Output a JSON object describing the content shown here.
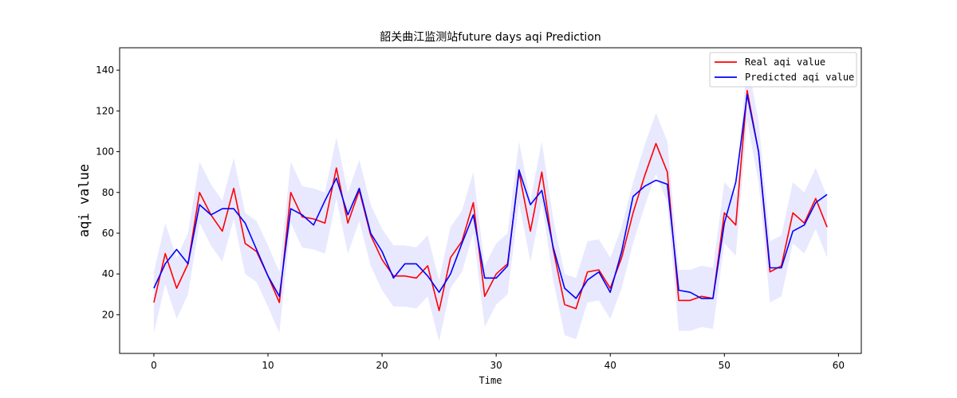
{
  "chart_data": {
    "type": "line",
    "title": "韶关曲江监测站future  days aqi Prediction",
    "xlabel": "Time",
    "ylabel": "aqi value",
    "xlim": [
      -3,
      62
    ],
    "ylim": [
      1,
      151
    ],
    "xticks": [
      0,
      10,
      20,
      30,
      40,
      50,
      60
    ],
    "yticks": [
      20,
      40,
      60,
      80,
      100,
      120,
      140
    ],
    "grid": false,
    "legend_position": "top-right",
    "x": [
      0,
      1,
      2,
      3,
      4,
      5,
      6,
      7,
      8,
      9,
      10,
      11,
      12,
      13,
      14,
      15,
      16,
      17,
      18,
      19,
      20,
      21,
      22,
      23,
      24,
      25,
      26,
      27,
      28,
      29,
      30,
      31,
      32,
      33,
      34,
      35,
      36,
      37,
      38,
      39,
      40,
      41,
      42,
      43,
      44,
      45,
      46,
      47,
      48,
      49,
      50,
      51,
      52,
      53,
      54,
      55,
      56,
      57,
      58,
      59
    ],
    "series": [
      {
        "name": "Real aqi value",
        "color": "#ff0000",
        "values": [
          26,
          50,
          33,
          45,
          80,
          69,
          61,
          82,
          55,
          51,
          39,
          26,
          80,
          68,
          67,
          65,
          92,
          65,
          81,
          59,
          47,
          39,
          39,
          38,
          44,
          22,
          48,
          56,
          75,
          29,
          40,
          45,
          90,
          61,
          90,
          52,
          25,
          23,
          41,
          42,
          33,
          48,
          70,
          88,
          104,
          90,
          27,
          27,
          29,
          28,
          70,
          64,
          130,
          100,
          41,
          44,
          70,
          65,
          77,
          63
        ]
      },
      {
        "name": "Predicted aqi value",
        "color": "#0000ff",
        "values": [
          33,
          45,
          52,
          45,
          74,
          69,
          72,
          72,
          65,
          52,
          39,
          29,
          72,
          69,
          64,
          76,
          87,
          69,
          82,
          60,
          51,
          38,
          45,
          45,
          39,
          31,
          40,
          55,
          69,
          38,
          38,
          44,
          91,
          74,
          81,
          53,
          33,
          28,
          37,
          41,
          31,
          51,
          78,
          83,
          86,
          84,
          32,
          31,
          28,
          28,
          65,
          85,
          128,
          100,
          43,
          43,
          61,
          64,
          75,
          79
        ]
      }
    ],
    "band": {
      "color": "#0000ff",
      "opacity": 0.09,
      "lower": [
        11,
        35,
        18,
        30,
        65,
        54,
        46,
        67,
        40,
        36,
        24,
        11,
        65,
        53,
        52,
        50,
        77,
        50,
        66,
        44,
        32,
        24,
        24,
        23,
        29,
        7,
        33,
        41,
        60,
        14,
        25,
        30,
        75,
        46,
        75,
        37,
        10,
        8,
        26,
        27,
        18,
        33,
        55,
        73,
        89,
        75,
        12,
        12,
        14,
        13,
        55,
        49,
        115,
        85,
        26,
        29,
        55,
        50,
        62,
        48
      ],
      "upper": [
        41,
        65,
        48,
        60,
        95,
        84,
        76,
        97,
        70,
        66,
        54,
        41,
        95,
        83,
        82,
        80,
        107,
        80,
        96,
        74,
        62,
        54,
        54,
        53,
        59,
        37,
        63,
        71,
        90,
        44,
        55,
        60,
        105,
        76,
        105,
        67,
        40,
        38,
        56,
        57,
        48,
        63,
        85,
        103,
        119,
        105,
        42,
        42,
        44,
        43,
        85,
        79,
        145,
        115,
        56,
        59,
        85,
        80,
        92,
        78
      ]
    }
  }
}
